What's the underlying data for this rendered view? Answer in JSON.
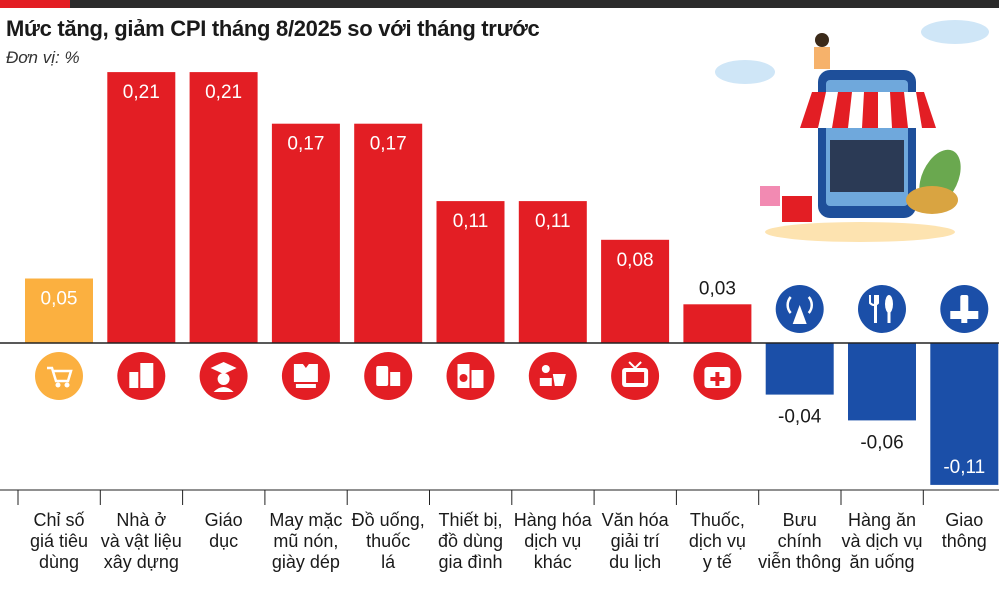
{
  "header": {
    "title": "Mức tăng, giảm CPI tháng 8/2025 so với tháng trước",
    "unit": "Đơn vị: %"
  },
  "colors": {
    "positive": "#e31e24",
    "highlight": "#fbb040",
    "negative": "#1b4fa8",
    "axis": "#222222"
  },
  "chart_data": {
    "type": "bar",
    "title": "Mức tăng, giảm CPI tháng 8/2025 so với tháng trước",
    "ylabel": "Đơn vị: %",
    "categories": [
      "Chỉ số\ngiá tiêu\ndùng",
      "Nhà ở\nvà vật liệu\nxây dựng",
      "Giáo\ndục",
      "May mặc\nmũ nón,\ngiày dép",
      "Đồ uống,\nthuốc\nlá",
      "Thiết bị,\nđồ dùng\ngia đình",
      "Hàng hóa\ndịch vụ\nkhác",
      "Văn hóa\ngiải trí\ndu lịch",
      "Thuốc,\ndịch vụ\ny tế",
      "Bưu\nchính\nviễn thông",
      "Hàng ăn\nvà dịch vụ\năn uống",
      "Giao\nthông"
    ],
    "values": [
      0.05,
      0.21,
      0.21,
      0.17,
      0.17,
      0.11,
      0.11,
      0.08,
      0.03,
      -0.04,
      -0.06,
      -0.11
    ],
    "value_labels": [
      "0,05",
      "0,21",
      "0,21",
      "0,17",
      "0,17",
      "0,11",
      "0,11",
      "0,08",
      "0,03",
      "-0,04",
      "-0,06",
      "-0,11"
    ],
    "icons": [
      "shopping-cart-icon",
      "buildings-icon",
      "graduate-icon",
      "clothing-icon",
      "drinks-icon",
      "appliances-icon",
      "goods-icon",
      "tv-icon",
      "medical-kit-icon",
      "antenna-icon",
      "fork-knife-icon",
      "traffic-light-icon"
    ],
    "ylim": [
      -0.11,
      0.21
    ],
    "grid": false,
    "legend": "none"
  }
}
